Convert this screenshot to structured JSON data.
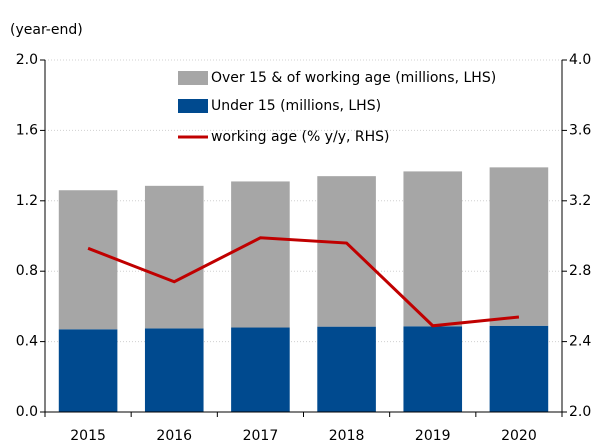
{
  "chart_data": {
    "type": "bar",
    "subtitle": "(year-end)",
    "categories": [
      "2015",
      "2016",
      "2017",
      "2018",
      "2019",
      "2020"
    ],
    "series": [
      {
        "name": "Under 15 (millions, LHS)",
        "color": "#004a8f",
        "values": [
          0.47,
          0.475,
          0.48,
          0.485,
          0.487,
          0.49
        ]
      },
      {
        "name": "Over 15 & of working age (millions, LHS)",
        "color": "#a6a6a6",
        "values": [
          0.79,
          0.81,
          0.83,
          0.855,
          0.88,
          0.9
        ]
      },
      {
        "name": "working age (% y/y, RHS)",
        "color": "#c00000",
        "type": "line",
        "axis": "y2",
        "values": [
          2.93,
          2.74,
          2.99,
          2.96,
          2.49,
          2.54
        ]
      }
    ],
    "stacked": true,
    "ylim": [
      0,
      2.0
    ],
    "yticks": [
      {
        "value": 0,
        "label": "0.0"
      },
      0.4,
      0.8,
      1.2,
      1.6,
      {
        "value": 2,
        "label": "2.0"
      }
    ],
    "y2lim": [
      2.0,
      4.0
    ],
    "y2ticks": [
      {
        "value": 2,
        "label": "2.0"
      },
      2.4,
      2.8,
      3.2,
      3.6,
      {
        "value": 4,
        "label": "4.0"
      }
    ],
    "grid": true,
    "legend": "top-right"
  }
}
